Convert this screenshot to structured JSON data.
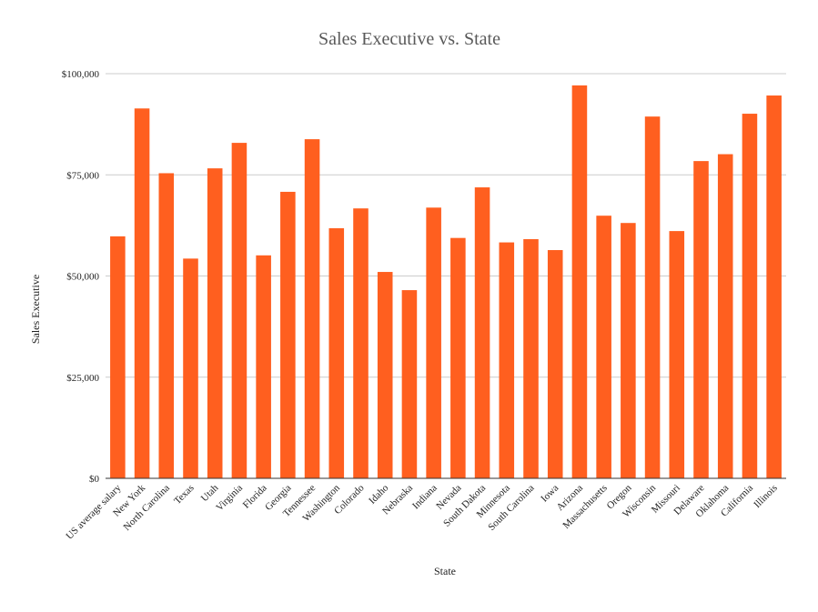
{
  "chart_data": {
    "type": "bar",
    "title": "Sales Executive vs. State",
    "xlabel": "State",
    "ylabel": "Sales Executive",
    "ylim": [
      0,
      100000
    ],
    "yticks": [
      0,
      25000,
      50000,
      75000,
      100000
    ],
    "ytick_labels": [
      "$0",
      "$25,000",
      "$50,000",
      "$75,000",
      "$100,000"
    ],
    "grid": true,
    "legend": "none",
    "categories": [
      "US average salary",
      "New York",
      "North Carolina",
      "Texas",
      "Utah",
      "Virginia",
      "Florida",
      "Georgia",
      "Tennessee",
      "Washington",
      "Colorado",
      "Idaho",
      "Nebraska",
      "Indiana",
      "Nevada",
      "South Dakota",
      "Minnesota",
      "South Carolina",
      "Iowa",
      "Arizona",
      "Massachusetts",
      "Oregon",
      "Wisconsin",
      "Missouri",
      "Delaware",
      "Oklahoma",
      "California",
      "Illinois"
    ],
    "series": [
      {
        "values": [
          59800,
          91400,
          75400,
          54300,
          76600,
          82900,
          55100,
          70800,
          83800,
          61800,
          66700,
          51000,
          46500,
          66900,
          59400,
          71900,
          58300,
          59100,
          56400,
          97100,
          64900,
          63100,
          89400,
          61100,
          78400,
          80100,
          90100,
          94600
        ],
        "color": "#ff5f1f"
      }
    ]
  }
}
